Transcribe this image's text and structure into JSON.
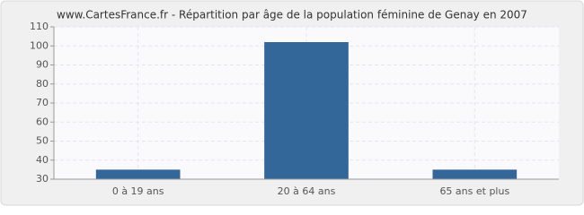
{
  "chart_data": {
    "type": "bar",
    "title": "www.CartesFrance.fr - Répartition par âge de la population féminine de Genay en 2007",
    "categories": [
      "0 à 19 ans",
      "20 à 64 ans",
      "65 ans et plus"
    ],
    "values": [
      35,
      102,
      35
    ],
    "color": "#336699",
    "ylim": [
      30,
      110
    ],
    "yticks": [
      30,
      40,
      50,
      60,
      70,
      80,
      90,
      100,
      110
    ],
    "grid": true
  }
}
